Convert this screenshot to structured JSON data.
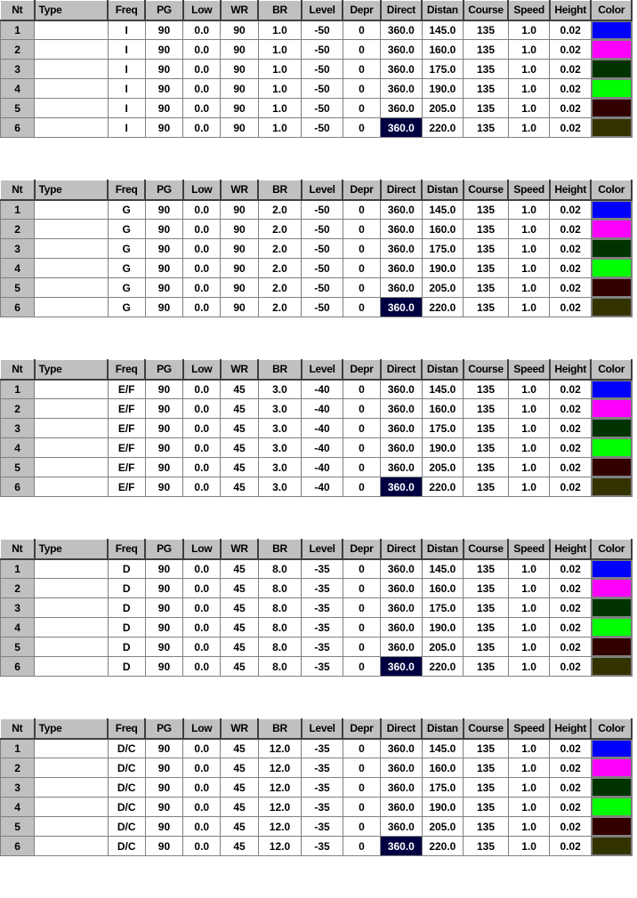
{
  "columns": [
    "Nt",
    "Type",
    "Freq",
    "PG",
    "Low",
    "WR",
    "BR",
    "Level",
    "Depr",
    "Direct",
    "Distan",
    "Course",
    "Speed",
    "Height",
    "Color"
  ],
  "colors": [
    "#0000ff",
    "#ff00ff",
    "#003300",
    "#00ff00",
    "#330000",
    "#333300"
  ],
  "grids": [
    {
      "rows": [
        {
          "nt": "1",
          "type": "",
          "freq": "I",
          "pg": "90",
          "low": "0.0",
          "wr": "90",
          "br": "1.0",
          "level": "-50",
          "depr": "0",
          "direct": "360.0",
          "distan": "145.0",
          "course": "135",
          "speed": "1.0",
          "height": "0.02"
        },
        {
          "nt": "2",
          "type": "",
          "freq": "I",
          "pg": "90",
          "low": "0.0",
          "wr": "90",
          "br": "1.0",
          "level": "-50",
          "depr": "0",
          "direct": "360.0",
          "distan": "160.0",
          "course": "135",
          "speed": "1.0",
          "height": "0.02"
        },
        {
          "nt": "3",
          "type": "",
          "freq": "I",
          "pg": "90",
          "low": "0.0",
          "wr": "90",
          "br": "1.0",
          "level": "-50",
          "depr": "0",
          "direct": "360.0",
          "distan": "175.0",
          "course": "135",
          "speed": "1.0",
          "height": "0.02"
        },
        {
          "nt": "4",
          "type": "",
          "freq": "I",
          "pg": "90",
          "low": "0.0",
          "wr": "90",
          "br": "1.0",
          "level": "-50",
          "depr": "0",
          "direct": "360.0",
          "distan": "190.0",
          "course": "135",
          "speed": "1.0",
          "height": "0.02"
        },
        {
          "nt": "5",
          "type": "",
          "freq": "I",
          "pg": "90",
          "low": "0.0",
          "wr": "90",
          "br": "1.0",
          "level": "-50",
          "depr": "0",
          "direct": "360.0",
          "distan": "205.0",
          "course": "135",
          "speed": "1.0",
          "height": "0.02"
        },
        {
          "nt": "6",
          "type": "",
          "freq": "I",
          "pg": "90",
          "low": "0.0",
          "wr": "90",
          "br": "1.0",
          "level": "-50",
          "depr": "0",
          "direct": "360.0",
          "distan": "220.0",
          "course": "135",
          "speed": "1.0",
          "height": "0.02"
        }
      ]
    },
    {
      "rows": [
        {
          "nt": "1",
          "type": "",
          "freq": "G",
          "pg": "90",
          "low": "0.0",
          "wr": "90",
          "br": "2.0",
          "level": "-50",
          "depr": "0",
          "direct": "360.0",
          "distan": "145.0",
          "course": "135",
          "speed": "1.0",
          "height": "0.02"
        },
        {
          "nt": "2",
          "type": "",
          "freq": "G",
          "pg": "90",
          "low": "0.0",
          "wr": "90",
          "br": "2.0",
          "level": "-50",
          "depr": "0",
          "direct": "360.0",
          "distan": "160.0",
          "course": "135",
          "speed": "1.0",
          "height": "0.02"
        },
        {
          "nt": "3",
          "type": "",
          "freq": "G",
          "pg": "90",
          "low": "0.0",
          "wr": "90",
          "br": "2.0",
          "level": "-50",
          "depr": "0",
          "direct": "360.0",
          "distan": "175.0",
          "course": "135",
          "speed": "1.0",
          "height": "0.02"
        },
        {
          "nt": "4",
          "type": "",
          "freq": "G",
          "pg": "90",
          "low": "0.0",
          "wr": "90",
          "br": "2.0",
          "level": "-50",
          "depr": "0",
          "direct": "360.0",
          "distan": "190.0",
          "course": "135",
          "speed": "1.0",
          "height": "0.02"
        },
        {
          "nt": "5",
          "type": "",
          "freq": "G",
          "pg": "90",
          "low": "0.0",
          "wr": "90",
          "br": "2.0",
          "level": "-50",
          "depr": "0",
          "direct": "360.0",
          "distan": "205.0",
          "course": "135",
          "speed": "1.0",
          "height": "0.02"
        },
        {
          "nt": "6",
          "type": "",
          "freq": "G",
          "pg": "90",
          "low": "0.0",
          "wr": "90",
          "br": "2.0",
          "level": "-50",
          "depr": "0",
          "direct": "360.0",
          "distan": "220.0",
          "course": "135",
          "speed": "1.0",
          "height": "0.02"
        }
      ]
    },
    {
      "rows": [
        {
          "nt": "1",
          "type": "",
          "freq": "E/F",
          "pg": "90",
          "low": "0.0",
          "wr": "45",
          "br": "3.0",
          "level": "-40",
          "depr": "0",
          "direct": "360.0",
          "distan": "145.0",
          "course": "135",
          "speed": "1.0",
          "height": "0.02"
        },
        {
          "nt": "2",
          "type": "",
          "freq": "E/F",
          "pg": "90",
          "low": "0.0",
          "wr": "45",
          "br": "3.0",
          "level": "-40",
          "depr": "0",
          "direct": "360.0",
          "distan": "160.0",
          "course": "135",
          "speed": "1.0",
          "height": "0.02"
        },
        {
          "nt": "3",
          "type": "",
          "freq": "E/F",
          "pg": "90",
          "low": "0.0",
          "wr": "45",
          "br": "3.0",
          "level": "-40",
          "depr": "0",
          "direct": "360.0",
          "distan": "175.0",
          "course": "135",
          "speed": "1.0",
          "height": "0.02"
        },
        {
          "nt": "4",
          "type": "",
          "freq": "E/F",
          "pg": "90",
          "low": "0.0",
          "wr": "45",
          "br": "3.0",
          "level": "-40",
          "depr": "0",
          "direct": "360.0",
          "distan": "190.0",
          "course": "135",
          "speed": "1.0",
          "height": "0.02"
        },
        {
          "nt": "5",
          "type": "",
          "freq": "E/F",
          "pg": "90",
          "low": "0.0",
          "wr": "45",
          "br": "3.0",
          "level": "-40",
          "depr": "0",
          "direct": "360.0",
          "distan": "205.0",
          "course": "135",
          "speed": "1.0",
          "height": "0.02"
        },
        {
          "nt": "6",
          "type": "",
          "freq": "E/F",
          "pg": "90",
          "low": "0.0",
          "wr": "45",
          "br": "3.0",
          "level": "-40",
          "depr": "0",
          "direct": "360.0",
          "distan": "220.0",
          "course": "135",
          "speed": "1.0",
          "height": "0.02"
        }
      ]
    },
    {
      "rows": [
        {
          "nt": "1",
          "type": "",
          "freq": "D",
          "pg": "90",
          "low": "0.0",
          "wr": "45",
          "br": "8.0",
          "level": "-35",
          "depr": "0",
          "direct": "360.0",
          "distan": "145.0",
          "course": "135",
          "speed": "1.0",
          "height": "0.02"
        },
        {
          "nt": "2",
          "type": "",
          "freq": "D",
          "pg": "90",
          "low": "0.0",
          "wr": "45",
          "br": "8.0",
          "level": "-35",
          "depr": "0",
          "direct": "360.0",
          "distan": "160.0",
          "course": "135",
          "speed": "1.0",
          "height": "0.02"
        },
        {
          "nt": "3",
          "type": "",
          "freq": "D",
          "pg": "90",
          "low": "0.0",
          "wr": "45",
          "br": "8.0",
          "level": "-35",
          "depr": "0",
          "direct": "360.0",
          "distan": "175.0",
          "course": "135",
          "speed": "1.0",
          "height": "0.02"
        },
        {
          "nt": "4",
          "type": "",
          "freq": "D",
          "pg": "90",
          "low": "0.0",
          "wr": "45",
          "br": "8.0",
          "level": "-35",
          "depr": "0",
          "direct": "360.0",
          "distan": "190.0",
          "course": "135",
          "speed": "1.0",
          "height": "0.02"
        },
        {
          "nt": "5",
          "type": "",
          "freq": "D",
          "pg": "90",
          "low": "0.0",
          "wr": "45",
          "br": "8.0",
          "level": "-35",
          "depr": "0",
          "direct": "360.0",
          "distan": "205.0",
          "course": "135",
          "speed": "1.0",
          "height": "0.02"
        },
        {
          "nt": "6",
          "type": "",
          "freq": "D",
          "pg": "90",
          "low": "0.0",
          "wr": "45",
          "br": "8.0",
          "level": "-35",
          "depr": "0",
          "direct": "360.0",
          "distan": "220.0",
          "course": "135",
          "speed": "1.0",
          "height": "0.02"
        }
      ]
    },
    {
      "rows": [
        {
          "nt": "1",
          "type": "",
          "freq": "D/C",
          "pg": "90",
          "low": "0.0",
          "wr": "45",
          "br": "12.0",
          "level": "-35",
          "depr": "0",
          "direct": "360.0",
          "distan": "145.0",
          "course": "135",
          "speed": "1.0",
          "height": "0.02"
        },
        {
          "nt": "2",
          "type": "",
          "freq": "D/C",
          "pg": "90",
          "low": "0.0",
          "wr": "45",
          "br": "12.0",
          "level": "-35",
          "depr": "0",
          "direct": "360.0",
          "distan": "160.0",
          "course": "135",
          "speed": "1.0",
          "height": "0.02"
        },
        {
          "nt": "3",
          "type": "",
          "freq": "D/C",
          "pg": "90",
          "low": "0.0",
          "wr": "45",
          "br": "12.0",
          "level": "-35",
          "depr": "0",
          "direct": "360.0",
          "distan": "175.0",
          "course": "135",
          "speed": "1.0",
          "height": "0.02"
        },
        {
          "nt": "4",
          "type": "",
          "freq": "D/C",
          "pg": "90",
          "low": "0.0",
          "wr": "45",
          "br": "12.0",
          "level": "-35",
          "depr": "0",
          "direct": "360.0",
          "distan": "190.0",
          "course": "135",
          "speed": "1.0",
          "height": "0.02"
        },
        {
          "nt": "5",
          "type": "",
          "freq": "D/C",
          "pg": "90",
          "low": "0.0",
          "wr": "45",
          "br": "12.0",
          "level": "-35",
          "depr": "0",
          "direct": "360.0",
          "distan": "205.0",
          "course": "135",
          "speed": "1.0",
          "height": "0.02"
        },
        {
          "nt": "6",
          "type": "",
          "freq": "D/C",
          "pg": "90",
          "low": "0.0",
          "wr": "45",
          "br": "12.0",
          "level": "-35",
          "depr": "0",
          "direct": "360.0",
          "distan": "220.0",
          "course": "135",
          "speed": "1.0",
          "height": "0.02"
        }
      ]
    }
  ]
}
